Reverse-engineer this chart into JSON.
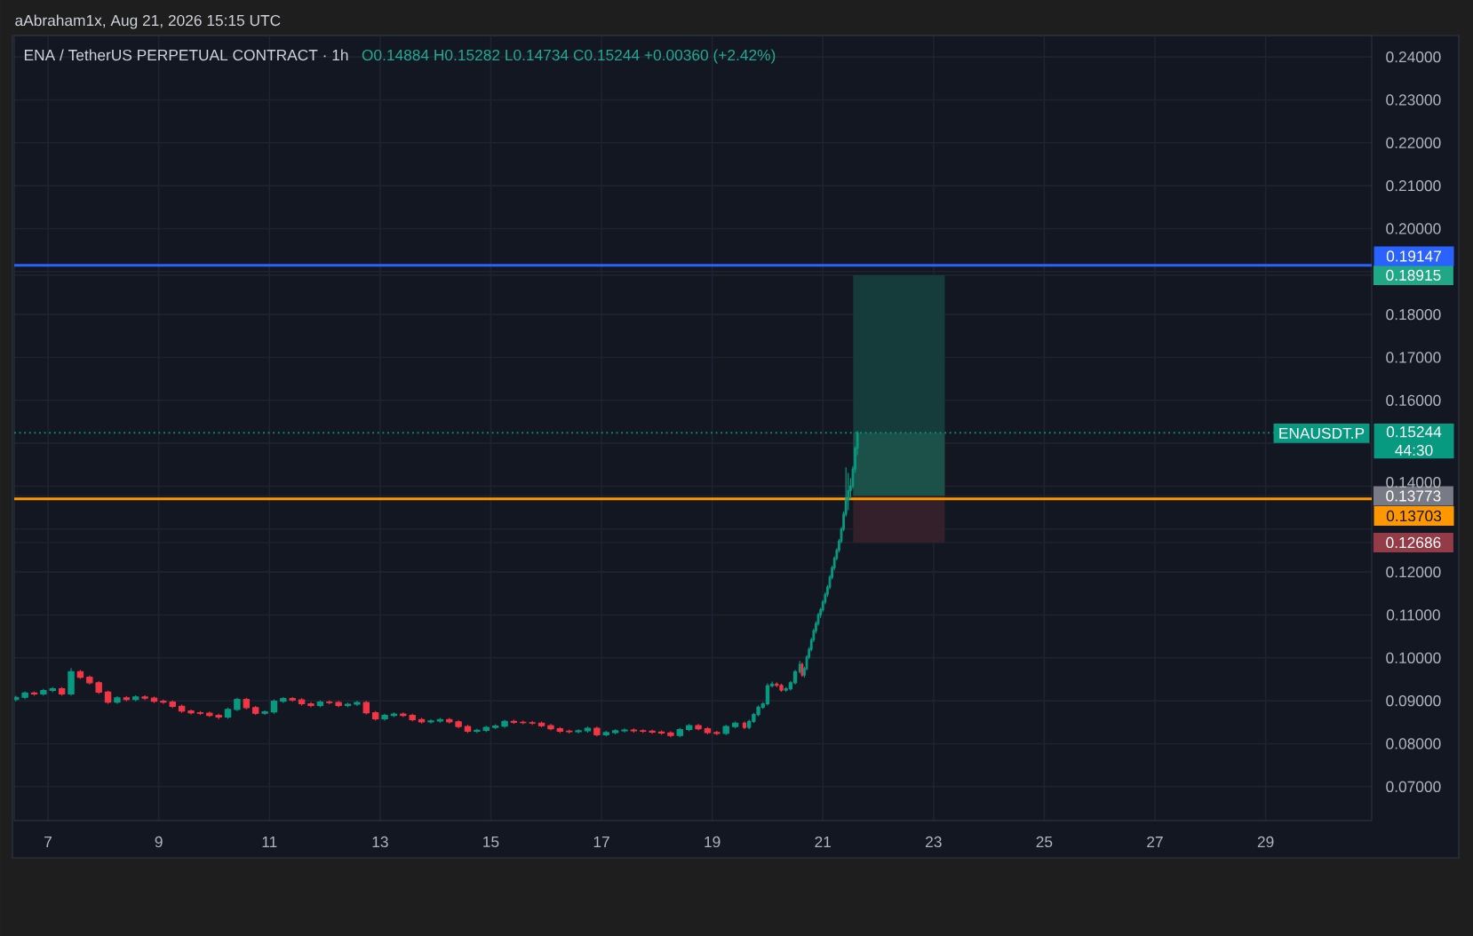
{
  "chart_data": {
    "type": "candlestick",
    "title": "ENA / TetherUS PERPETUAL CONTRACT · 1h",
    "subtitle": "O0.14884 H0.15282 L0.14734 C0.15244 +0.00360 (+2.42%)",
    "annotations": [
      "aAbraham1x, Aug 21, 2026 15:15 UTC"
    ],
    "xlim": [
      "2026-08-06T09:20",
      "2026-08-30T22:00"
    ],
    "ylim": [
      0.0621,
      0.245
    ],
    "xticks": [
      {
        "value": "2026-08-07",
        "label": "7"
      },
      {
        "value": "2026-08-09",
        "label": "9"
      },
      {
        "value": "2026-08-11",
        "label": "11"
      },
      {
        "value": "2026-08-13",
        "label": "13"
      },
      {
        "value": "2026-08-15",
        "label": "15"
      },
      {
        "value": "2026-08-17",
        "label": "17"
      },
      {
        "value": "2026-08-19",
        "label": "19"
      },
      {
        "value": "2026-08-21",
        "label": "21"
      },
      {
        "value": "2026-08-23",
        "label": "23"
      },
      {
        "value": "2026-08-25",
        "label": "25"
      },
      {
        "value": "2026-08-27",
        "label": "27"
      },
      {
        "value": "2026-08-29",
        "label": "29"
      }
    ],
    "yticks": [
      {
        "value": 0.07,
        "label": "0.07000"
      },
      {
        "value": 0.08,
        "label": "0.08000"
      },
      {
        "value": 0.09,
        "label": "0.09000"
      },
      {
        "value": 0.1,
        "label": "0.10000"
      },
      {
        "value": 0.11,
        "label": "0.11000"
      },
      {
        "value": 0.12,
        "label": "0.12000"
      },
      {
        "value": 0.12686,
        "label": "0.12686"
      },
      {
        "value": 0.13,
        "label": null
      },
      {
        "value": 0.13773,
        "label": "0.13773"
      },
      {
        "value": 0.14,
        "label": "0.14000"
      },
      {
        "value": 0.15,
        "label": null
      },
      {
        "value": 0.16,
        "label": "0.16000"
      },
      {
        "value": 0.17,
        "label": "0.17000"
      },
      {
        "value": 0.18,
        "label": "0.18000"
      },
      {
        "value": 0.18915,
        "label": "0.18915"
      },
      {
        "value": 0.19,
        "label": null
      },
      {
        "value": 0.2,
        "label": "0.20000"
      },
      {
        "value": 0.21,
        "label": "0.21000"
      },
      {
        "value": 0.22,
        "label": "0.22000"
      },
      {
        "value": 0.23,
        "label": "0.23000"
      },
      {
        "value": 0.24,
        "label": "0.24000"
      }
    ],
    "grid": true,
    "ref_lines": [
      {
        "axis": "y",
        "value": 0.19147,
        "label": "0.19147",
        "color": "#2962ff"
      },
      {
        "axis": "y",
        "value": 0.15244,
        "label": "0.15244 44:30",
        "color": "#089981",
        "line_style": "dotted"
      },
      {
        "axis": "y",
        "value": 0.13703,
        "label": "0.13703",
        "color": "#ff9800"
      }
    ],
    "series": [
      {
        "name": "ENAUSDT.P",
        "x": [
          "2026-08-06T10:00",
          "2026-08-06T14:00",
          "2026-08-06T18:00",
          "2026-08-06T22:00",
          "2026-08-07T02:00",
          "2026-08-07T06:00",
          "2026-08-07T10:00",
          "2026-08-07T14:00",
          "2026-08-07T18:00",
          "2026-08-07T22:00",
          "2026-08-08T02:00",
          "2026-08-08T06:00",
          "2026-08-08T10:00",
          "2026-08-08T14:00",
          "2026-08-08T18:00",
          "2026-08-08T22:00",
          "2026-08-09T02:00",
          "2026-08-09T06:00",
          "2026-08-09T10:00",
          "2026-08-09T14:00",
          "2026-08-09T18:00",
          "2026-08-09T22:00",
          "2026-08-10T02:00",
          "2026-08-10T06:00",
          "2026-08-10T10:00",
          "2026-08-10T14:00",
          "2026-08-10T18:00",
          "2026-08-10T22:00",
          "2026-08-11T02:00",
          "2026-08-11T06:00",
          "2026-08-11T10:00",
          "2026-08-11T14:00",
          "2026-08-11T18:00",
          "2026-08-11T22:00",
          "2026-08-12T02:00",
          "2026-08-12T06:00",
          "2026-08-12T10:00",
          "2026-08-12T14:00",
          "2026-08-12T18:00",
          "2026-08-12T22:00",
          "2026-08-13T02:00",
          "2026-08-13T06:00",
          "2026-08-13T10:00",
          "2026-08-13T14:00",
          "2026-08-13T18:00",
          "2026-08-13T22:00",
          "2026-08-14T02:00",
          "2026-08-14T06:00",
          "2026-08-14T10:00",
          "2026-08-14T14:00",
          "2026-08-14T18:00",
          "2026-08-14T22:00",
          "2026-08-15T02:00",
          "2026-08-15T06:00",
          "2026-08-15T10:00",
          "2026-08-15T14:00",
          "2026-08-15T18:00",
          "2026-08-15T22:00",
          "2026-08-16T02:00",
          "2026-08-16T06:00",
          "2026-08-16T10:00",
          "2026-08-16T14:00",
          "2026-08-16T18:00",
          "2026-08-16T22:00",
          "2026-08-17T02:00",
          "2026-08-17T06:00",
          "2026-08-17T10:00",
          "2026-08-17T14:00",
          "2026-08-17T18:00",
          "2026-08-17T22:00",
          "2026-08-18T02:00",
          "2026-08-18T06:00",
          "2026-08-18T10:00",
          "2026-08-18T14:00",
          "2026-08-18T18:00",
          "2026-08-18T22:00",
          "2026-08-19T02:00",
          "2026-08-19T06:00",
          "2026-08-19T10:00",
          "2026-08-19T14:00",
          "2026-08-19T16:00",
          "2026-08-19T18:00",
          "2026-08-19T20:00",
          "2026-08-19T22:00",
          "2026-08-20T00:00",
          "2026-08-20T02:00",
          "2026-08-20T04:00",
          "2026-08-20T06:00",
          "2026-08-20T08:00",
          "2026-08-20T10:00",
          "2026-08-20T12:00",
          "2026-08-20T14:00",
          "2026-08-20T15:00",
          "2026-08-20T16:00",
          "2026-08-20T17:00",
          "2026-08-20T18:00",
          "2026-08-20T19:00",
          "2026-08-20T20:00",
          "2026-08-20T21:00",
          "2026-08-20T22:00",
          "2026-08-20T23:00",
          "2026-08-21T00:00",
          "2026-08-21T01:00",
          "2026-08-21T02:00",
          "2026-08-21T03:00",
          "2026-08-21T04:00",
          "2026-08-21T05:00",
          "2026-08-21T06:00",
          "2026-08-21T07:00",
          "2026-08-21T08:00",
          "2026-08-21T09:00",
          "2026-08-21T10:00",
          "2026-08-21T11:00",
          "2026-08-21T12:00",
          "2026-08-21T13:00",
          "2026-08-21T14:00",
          "2026-08-21T15:00"
        ],
        "ohlc": [
          [
            0.0903,
            0.0911,
            0.09,
            0.0908
          ],
          [
            0.0908,
            0.0921,
            0.0905,
            0.0918
          ],
          [
            0.0918,
            0.0921,
            0.0913,
            0.0916
          ],
          [
            0.0916,
            0.0927,
            0.0913,
            0.0924
          ],
          [
            0.0924,
            0.0931,
            0.0921,
            0.0928
          ],
          [
            0.0928,
            0.0931,
            0.0913,
            0.0916
          ],
          [
            0.0916,
            0.0975,
            0.0913,
            0.0968
          ],
          [
            0.0968,
            0.0971,
            0.0952,
            0.0955
          ],
          [
            0.0955,
            0.0958,
            0.0939,
            0.0942
          ],
          [
            0.0942,
            0.0945,
            0.0917,
            0.092
          ],
          [
            0.092,
            0.0923,
            0.0894,
            0.0897
          ],
          [
            0.0897,
            0.091,
            0.0894,
            0.0907
          ],
          [
            0.0907,
            0.091,
            0.09,
            0.0903
          ],
          [
            0.0903,
            0.0912,
            0.09,
            0.0909
          ],
          [
            0.0909,
            0.0912,
            0.0903,
            0.0906
          ],
          [
            0.0906,
            0.0909,
            0.0896,
            0.0899
          ],
          [
            0.0899,
            0.0902,
            0.0894,
            0.0897
          ],
          [
            0.0897,
            0.09,
            0.0884,
            0.0887
          ],
          [
            0.0887,
            0.089,
            0.0873,
            0.0876
          ],
          [
            0.0876,
            0.0879,
            0.0869,
            0.0872
          ],
          [
            0.0872,
            0.0875,
            0.0868,
            0.0871
          ],
          [
            0.0871,
            0.0874,
            0.0863,
            0.0866
          ],
          [
            0.0866,
            0.0869,
            0.0858,
            0.0862
          ],
          [
            0.0862,
            0.0883,
            0.0859,
            0.088
          ],
          [
            0.088,
            0.0906,
            0.0877,
            0.0903
          ],
          [
            0.0903,
            0.0906,
            0.0881,
            0.0884
          ],
          [
            0.0884,
            0.0887,
            0.0868,
            0.0871
          ],
          [
            0.0871,
            0.0877,
            0.0868,
            0.0874
          ],
          [
            0.0874,
            0.0902,
            0.0871,
            0.0899
          ],
          [
            0.0899,
            0.0908,
            0.0896,
            0.0905
          ],
          [
            0.0905,
            0.0908,
            0.0899,
            0.0902
          ],
          [
            0.0902,
            0.0905,
            0.089,
            0.0893
          ],
          [
            0.0893,
            0.0896,
            0.0886,
            0.0889
          ],
          [
            0.0889,
            0.09,
            0.0886,
            0.0897
          ],
          [
            0.0897,
            0.09,
            0.0893,
            0.0896
          ],
          [
            0.0896,
            0.0899,
            0.0886,
            0.0889
          ],
          [
            0.0889,
            0.0895,
            0.0886,
            0.0892
          ],
          [
            0.0892,
            0.0899,
            0.0889,
            0.0896
          ],
          [
            0.0896,
            0.0899,
            0.0869,
            0.0872
          ],
          [
            0.0872,
            0.0875,
            0.0855,
            0.0858
          ],
          [
            0.0858,
            0.0869,
            0.0855,
            0.0866
          ],
          [
            0.0866,
            0.0872,
            0.0863,
            0.0869
          ],
          [
            0.0869,
            0.0872,
            0.0863,
            0.0866
          ],
          [
            0.0866,
            0.0869,
            0.0853,
            0.0856
          ],
          [
            0.0856,
            0.0859,
            0.0848,
            0.0851
          ],
          [
            0.0851,
            0.0856,
            0.0848,
            0.0853
          ],
          [
            0.0853,
            0.0859,
            0.085,
            0.0856
          ],
          [
            0.0856,
            0.0859,
            0.0848,
            0.0851
          ],
          [
            0.0851,
            0.0854,
            0.0837,
            0.084
          ],
          [
            0.084,
            0.0843,
            0.0826,
            0.0829
          ],
          [
            0.0829,
            0.0834,
            0.0826,
            0.0831
          ],
          [
            0.0831,
            0.0841,
            0.0828,
            0.0838
          ],
          [
            0.0838,
            0.0844,
            0.0835,
            0.0841
          ],
          [
            0.0841,
            0.0855,
            0.0838,
            0.0852
          ],
          [
            0.0852,
            0.0855,
            0.0847,
            0.085
          ],
          [
            0.085,
            0.0853,
            0.0846,
            0.0849
          ],
          [
            0.0849,
            0.0852,
            0.0845,
            0.0848
          ],
          [
            0.0848,
            0.0851,
            0.0839,
            0.0842
          ],
          [
            0.0842,
            0.0845,
            0.0832,
            0.0835
          ],
          [
            0.0835,
            0.0838,
            0.0826,
            0.0829
          ],
          [
            0.0829,
            0.0832,
            0.0825,
            0.0828
          ],
          [
            0.0828,
            0.0833,
            0.0825,
            0.083
          ],
          [
            0.083,
            0.0839,
            0.0827,
            0.0836
          ],
          [
            0.0836,
            0.0839,
            0.0818,
            0.0821
          ],
          [
            0.0821,
            0.0829,
            0.0818,
            0.0826
          ],
          [
            0.0826,
            0.0833,
            0.0823,
            0.083
          ],
          [
            0.083,
            0.0835,
            0.0827,
            0.0832
          ],
          [
            0.0832,
            0.0835,
            0.0827,
            0.083
          ],
          [
            0.083,
            0.0833,
            0.0826,
            0.0829
          ],
          [
            0.0829,
            0.0832,
            0.0824,
            0.0827
          ],
          [
            0.0827,
            0.083,
            0.0822,
            0.0825
          ],
          [
            0.0825,
            0.0828,
            0.0816,
            0.0819
          ],
          [
            0.0819,
            0.0836,
            0.0816,
            0.0833
          ],
          [
            0.0833,
            0.0845,
            0.083,
            0.0842
          ],
          [
            0.0842,
            0.0845,
            0.0832,
            0.0835
          ],
          [
            0.0835,
            0.0838,
            0.0823,
            0.0826
          ],
          [
            0.0826,
            0.0829,
            0.0821,
            0.0824
          ],
          [
            0.0824,
            0.0843,
            0.0821,
            0.084
          ],
          [
            0.084,
            0.0851,
            0.0837,
            0.0848
          ],
          [
            0.0848,
            0.0851,
            0.0835,
            0.0838
          ],
          [
            0.0838,
            0.0855,
            0.0835,
            0.0852
          ],
          [
            0.0852,
            0.0871,
            0.0849,
            0.0868
          ],
          [
            0.0868,
            0.0888,
            0.0865,
            0.0885
          ],
          [
            0.0885,
            0.0896,
            0.0882,
            0.0893
          ],
          [
            0.0893,
            0.094,
            0.089,
            0.0935
          ],
          [
            0.0935,
            0.0944,
            0.0932,
            0.0939
          ],
          [
            0.0939,
            0.0942,
            0.0933,
            0.0936
          ],
          [
            0.0936,
            0.0939,
            0.0922,
            0.0925
          ],
          [
            0.0925,
            0.0931,
            0.0922,
            0.0928
          ],
          [
            0.0928,
            0.0945,
            0.0925,
            0.0942
          ],
          [
            0.0942,
            0.0971,
            0.0939,
            0.0968
          ],
          [
            0.0968,
            0.0992,
            0.0965,
            0.0985
          ],
          [
            0.0985,
            0.0988,
            0.0957,
            0.096
          ],
          [
            0.096,
            0.0978,
            0.0955,
            0.0975
          ],
          [
            0.0975,
            0.1005,
            0.0972,
            0.1002
          ],
          [
            0.1002,
            0.1024,
            0.0998,
            0.102
          ],
          [
            0.102,
            0.1046,
            0.1016,
            0.1042
          ],
          [
            0.1042,
            0.1067,
            0.1038,
            0.1063
          ],
          [
            0.1063,
            0.1084,
            0.1058,
            0.108
          ],
          [
            0.108,
            0.1104,
            0.1076,
            0.11
          ],
          [
            0.11,
            0.1116,
            0.1094,
            0.1112
          ],
          [
            0.1112,
            0.1134,
            0.1108,
            0.113
          ],
          [
            0.113,
            0.1152,
            0.1126,
            0.1148
          ],
          [
            0.1148,
            0.1169,
            0.1143,
            0.1165
          ],
          [
            0.1165,
            0.1192,
            0.1161,
            0.1188
          ],
          [
            0.1188,
            0.1214,
            0.1184,
            0.121
          ],
          [
            0.121,
            0.1236,
            0.1205,
            0.1232
          ],
          [
            0.1232,
            0.1255,
            0.1228,
            0.1251
          ],
          [
            0.1251,
            0.1276,
            0.1247,
            0.1272
          ],
          [
            0.1272,
            0.1304,
            0.1268,
            0.13
          ],
          [
            0.13,
            0.134,
            0.1296,
            0.1335
          ],
          [
            0.1335,
            0.1443,
            0.133,
            0.1368
          ],
          [
            0.1368,
            0.143,
            0.1345,
            0.139
          ],
          [
            0.139,
            0.1418,
            0.1372,
            0.14
          ],
          [
            0.14,
            0.1446,
            0.1395,
            0.144
          ],
          [
            0.144,
            0.1492,
            0.1432,
            0.14884
          ],
          [
            0.14884,
            0.15282,
            0.14734,
            0.15244
          ]
        ],
        "colors": [
          "#089981",
          "#089981",
          "#f23645",
          "#089981",
          "#089981",
          "#f23645",
          "#089981",
          "#f23645",
          "#f23645",
          "#f23645",
          "#f23645",
          "#089981",
          "#f23645",
          "#089981",
          "#f23645",
          "#f23645",
          "#f23645",
          "#f23645",
          "#f23645",
          "#f23645",
          "#f23645",
          "#f23645",
          "#f23645",
          "#089981",
          "#089981",
          "#f23645",
          "#f23645",
          "#089981",
          "#089981",
          "#089981",
          "#f23645",
          "#f23645",
          "#f23645",
          "#089981",
          "#f23645",
          "#f23645",
          "#089981",
          "#089981",
          "#f23645",
          "#f23645",
          "#089981",
          "#089981",
          "#f23645",
          "#f23645",
          "#f23645",
          "#089981",
          "#089981",
          "#f23645",
          "#f23645",
          "#f23645",
          "#089981",
          "#089981",
          "#089981",
          "#089981",
          "#f23645",
          "#f23645",
          "#f23645",
          "#f23645",
          "#f23645",
          "#f23645",
          "#f23645",
          "#089981",
          "#089981",
          "#f23645",
          "#089981",
          "#089981",
          "#089981",
          "#f23645",
          "#f23645",
          "#f23645",
          "#f23645",
          "#f23645",
          "#089981",
          "#089981",
          "#f23645",
          "#f23645",
          "#f23645",
          "#089981",
          "#089981",
          "#f23645",
          "#089981",
          "#089981",
          "#089981",
          "#089981",
          "#089981",
          "#089981",
          "#f23645",
          "#f23645",
          "#089981",
          "#089981",
          "#089981",
          "#089981",
          "#f23645",
          "#089981",
          "#089981",
          "#089981",
          "#089981",
          "#089981",
          "#089981",
          "#089981",
          "#089981",
          "#089981",
          "#089981",
          "#089981",
          "#089981",
          "#089981",
          "#089981",
          "#089981",
          "#089981",
          "#089981",
          "#089981",
          "#089981",
          "#089981",
          "#089981",
          "#089981",
          "#089981",
          "#089981"
        ]
      },
      {
        "type": "bar",
        "x": [
          "2026-08-22T09:00"
        ],
        "base": [
          0.15244
        ],
        "values": [
          0.03671
        ],
        "color": "#163b3b"
      },
      {
        "type": "bar",
        "x": [
          "2026-08-22T09:00"
        ],
        "base": [
          0.13773
        ],
        "values": [
          0.01471
        ],
        "color": "#1b5149"
      },
      {
        "type": "bar",
        "x": [
          "2026-08-22T09:00"
        ],
        "base": [
          0.13773
        ],
        "values": [
          -0.01087
        ],
        "color": "#33202b"
      }
    ]
  }
}
